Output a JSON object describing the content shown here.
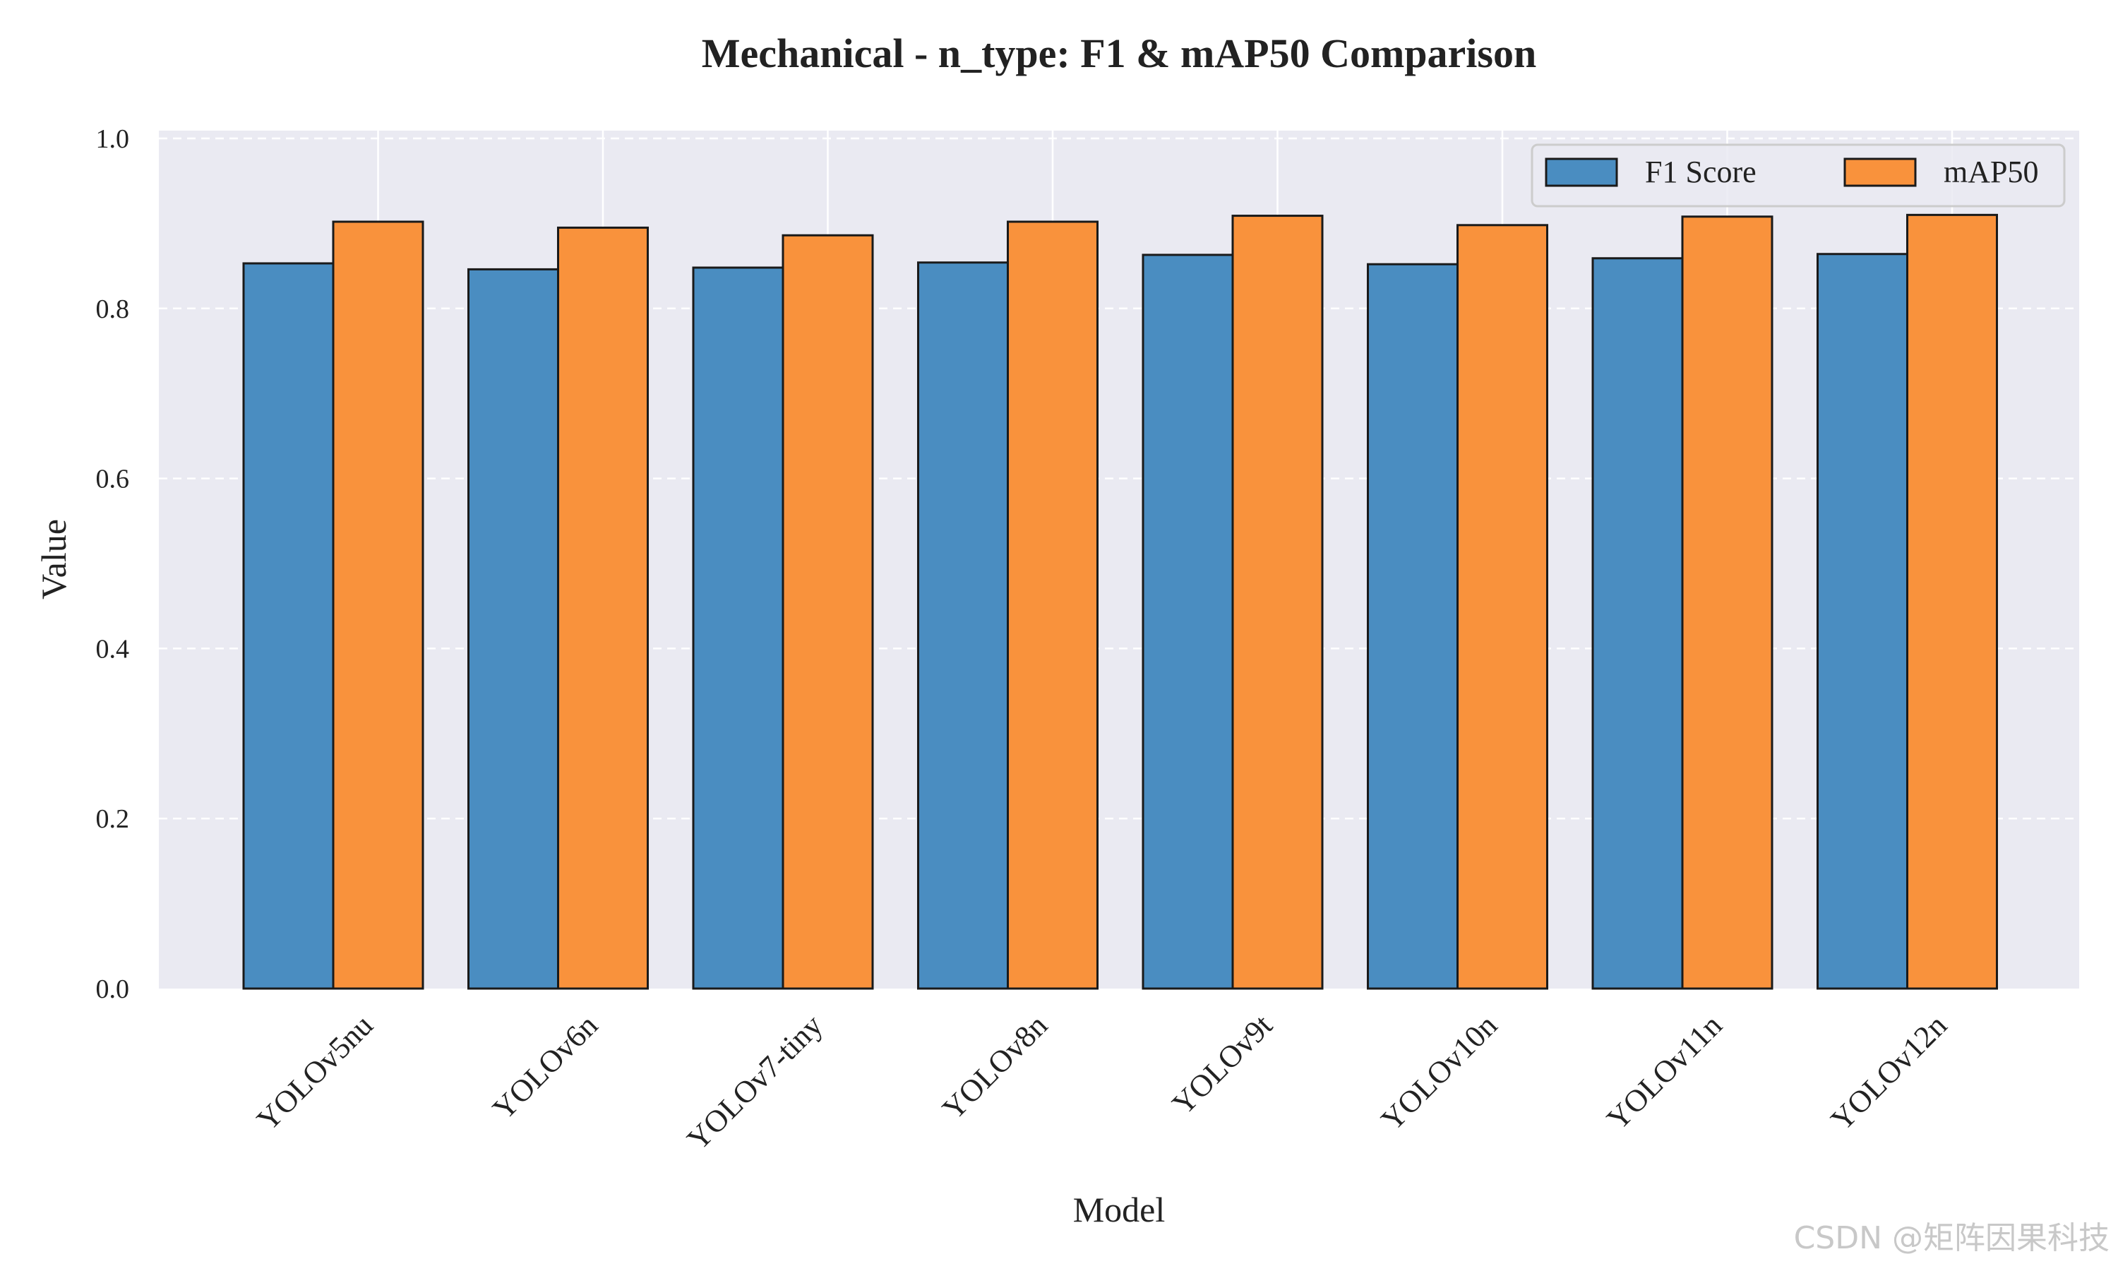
{
  "chart_data": {
    "type": "bar",
    "title": "Mechanical - n_type: F1 & mAP50 Comparison",
    "xlabel": "Model",
    "ylabel": "Value",
    "ylim": [
      0,
      1.0
    ],
    "yticks": [
      "0.0",
      "0.2",
      "0.4",
      "0.6",
      "0.8",
      "1.0"
    ],
    "grid": true,
    "legend_position": "top-right",
    "categories": [
      "YOLOv5nu",
      "YOLOv6n",
      "YOLOv7-tiny",
      "YOLOv8n",
      "YOLOv9t",
      "YOLOv10n",
      "YOLOv11n",
      "YOLOv12n"
    ],
    "series": [
      {
        "name": "F1 Score",
        "color": "#4a8dc1",
        "values": [
          0.853,
          0.846,
          0.848,
          0.854,
          0.863,
          0.852,
          0.859,
          0.864
        ]
      },
      {
        "name": "mAP50",
        "color": "#f9923c",
        "values": [
          0.902,
          0.895,
          0.886,
          0.902,
          0.909,
          0.898,
          0.908,
          0.91
        ]
      }
    ]
  },
  "watermark": "CSDN @矩阵因果科技"
}
